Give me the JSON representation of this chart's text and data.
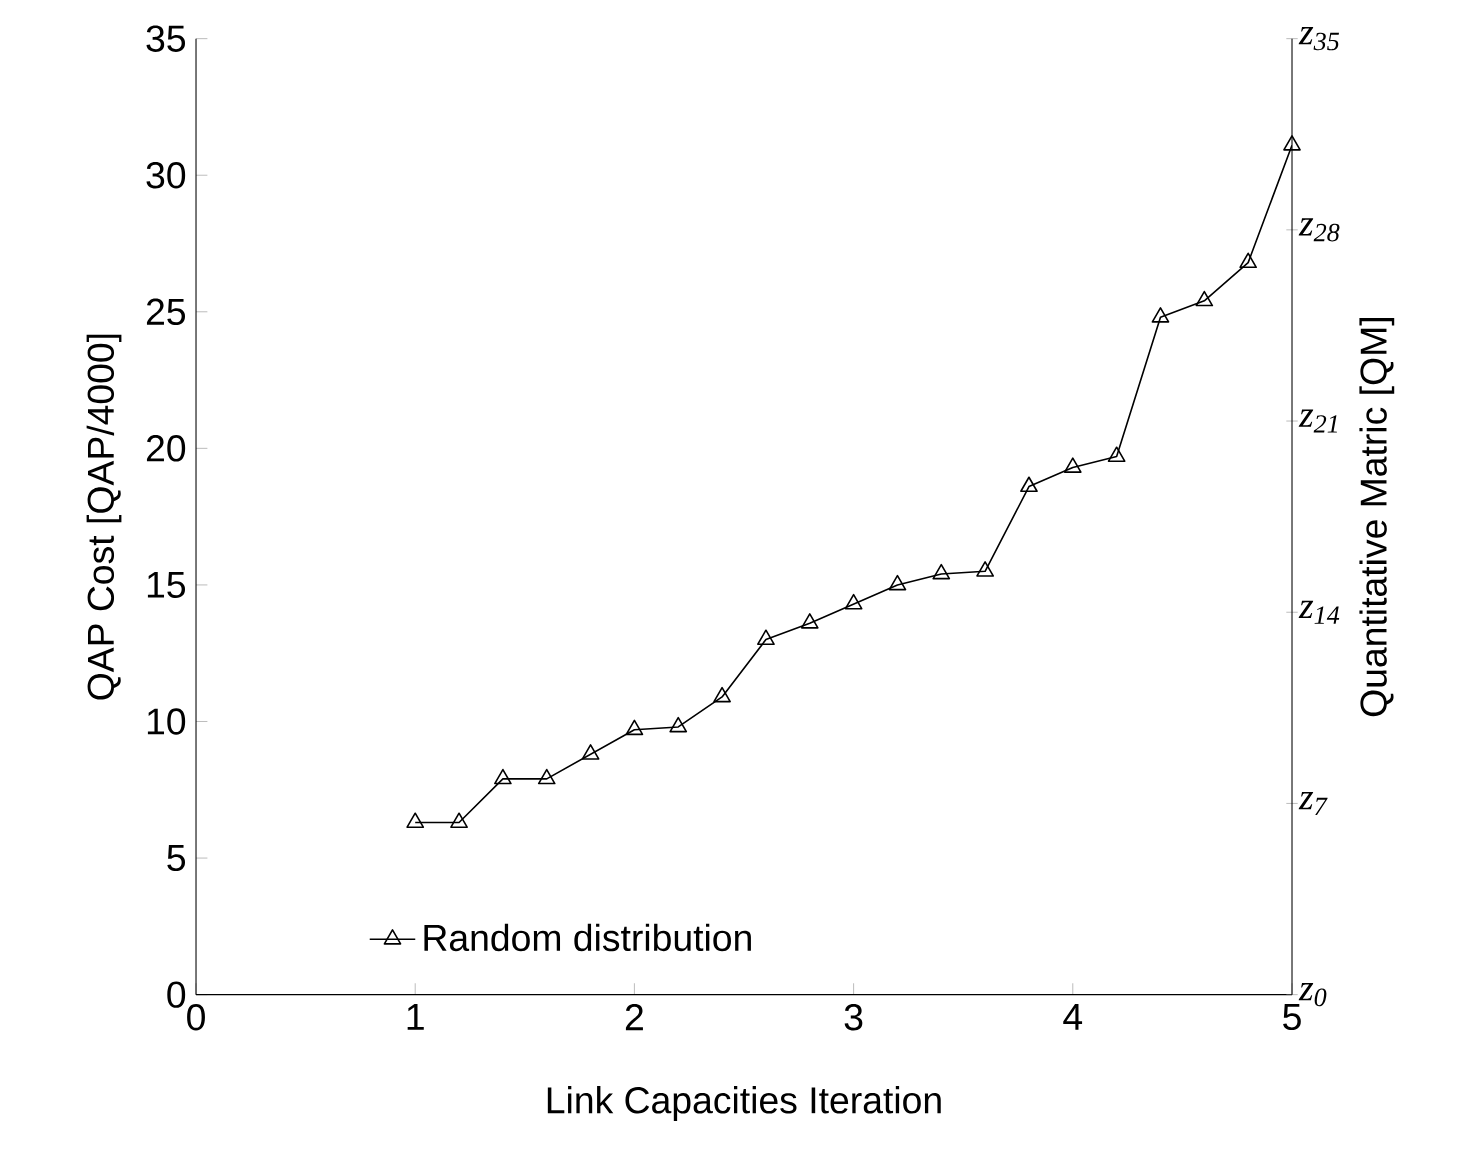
{
  "chart_data": {
    "type": "line",
    "xlabel": "Link Capacities Iteration",
    "ylabel": "QAP Cost [QAP/4000]",
    "y2label": "Quantitative Matric [QM]",
    "x": [
      1,
      1.2,
      1.4,
      1.6,
      1.8,
      2,
      2.2,
      2.4,
      2.6,
      2.8,
      3,
      3.2,
      3.4,
      3.6,
      3.8,
      4,
      4.2,
      4.4,
      4.6,
      4.8,
      5
    ],
    "series": [
      {
        "name": "Random distribution",
        "color": "#000000",
        "values": [
          6.3,
          6.3,
          7.9,
          7.9,
          8.8,
          9.7,
          9.8,
          10.9,
          13.0,
          13.6,
          14.3,
          15.0,
          15.4,
          15.5,
          18.6,
          19.3,
          19.7,
          24.8,
          25.4,
          26.8,
          31.1
        ]
      }
    ],
    "xlim": [
      0,
      5
    ],
    "xticks": [
      0,
      1,
      2,
      3,
      4,
      5
    ],
    "ylim": [
      0,
      35
    ],
    "yticks": [
      0,
      5,
      10,
      15,
      20,
      25,
      30,
      35
    ],
    "y2lim": [
      0,
      35
    ],
    "y2ticks": [
      {
        "value": 0,
        "label": "z$_{0}$"
      },
      {
        "value": 7,
        "label": "z$_{7}$"
      },
      {
        "value": 14,
        "label": "z$_{14}$"
      },
      {
        "value": 21,
        "label": "z$_{21}$"
      },
      {
        "value": 28,
        "label": "z$_{28}$"
      },
      {
        "value": 35,
        "label": "z$_{35}$"
      }
    ],
    "legend": "bottom left",
    "grid": false,
    "marker": "triangle",
    "line_style": "solid"
  }
}
